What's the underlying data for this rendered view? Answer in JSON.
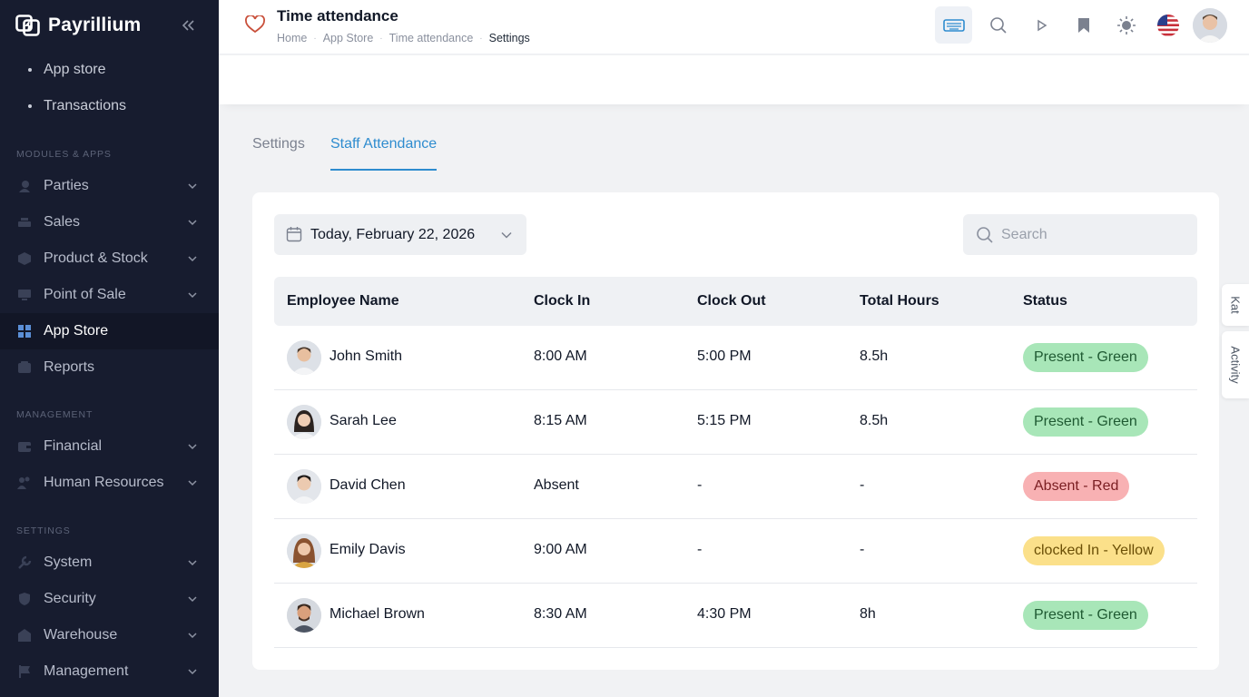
{
  "app": {
    "brand": "Payrillium"
  },
  "sidebar": {
    "sub_items": [
      {
        "label": "App store"
      },
      {
        "label": "Transactions"
      }
    ],
    "sections": {
      "modules": "MODULES & APPS",
      "management": "MANAGEMENT",
      "settings": "SETTINGS"
    },
    "modules": [
      {
        "label": "Parties",
        "icon": "parties-icon"
      },
      {
        "label": "Sales",
        "icon": "sales-icon"
      },
      {
        "label": "Product & Stock",
        "icon": "box-icon"
      },
      {
        "label": "Point of Sale",
        "icon": "monitor-icon"
      },
      {
        "label": "App Store",
        "icon": "grid-icon",
        "active": true
      },
      {
        "label": "Reports",
        "icon": "reports-icon"
      }
    ],
    "management": [
      {
        "label": "Financial",
        "icon": "wallet-icon"
      },
      {
        "label": "Human Resources",
        "icon": "people-icon"
      }
    ],
    "settings": [
      {
        "label": "System",
        "icon": "wrench-icon"
      },
      {
        "label": "Security",
        "icon": "shield-icon"
      },
      {
        "label": "Warehouse",
        "icon": "warehouse-icon"
      },
      {
        "label": "Management",
        "icon": "flag-icon"
      }
    ]
  },
  "header": {
    "title": "Time attendance",
    "breadcrumb": [
      "Home",
      "App Store",
      "Time attendance",
      "Settings"
    ]
  },
  "tabs": [
    {
      "label": "Settings",
      "active": false
    },
    {
      "label": "Staff Attendance",
      "active": true
    }
  ],
  "filters": {
    "date": "Today, February 22, 2026",
    "search_placeholder": "Search"
  },
  "table": {
    "columns": [
      "Employee Name",
      "Clock In",
      "Clock Out",
      "Total Hours",
      "Status"
    ],
    "rows": [
      {
        "name": "John Smith",
        "clock_in": "8:00 AM",
        "clock_out": "5:00 PM",
        "total": "8.5h",
        "status": "Present - Green",
        "status_color": "green"
      },
      {
        "name": "Sarah Lee",
        "clock_in": "8:15 AM",
        "clock_out": "5:15 PM",
        "total": "8.5h",
        "status": "Present - Green",
        "status_color": "green"
      },
      {
        "name": "David Chen",
        "clock_in": "Absent",
        "clock_out": "-",
        "total": "-",
        "status": "Absent - Red",
        "status_color": "red"
      },
      {
        "name": "Emily Davis",
        "clock_in": "9:00 AM",
        "clock_out": "-",
        "total": "-",
        "status": "clocked In - Yellow",
        "status_color": "yellow"
      },
      {
        "name": "Michael Brown",
        "clock_in": "8:30 AM",
        "clock_out": "4:30 PM",
        "total": "8h",
        "status": "Present - Green",
        "status_color": "green"
      }
    ]
  },
  "side_tabs": [
    "Kat",
    "Activity"
  ],
  "colors": {
    "sidebar_bg": "#171c2f",
    "accent": "#2e8ccf",
    "green": "#a8e6b8",
    "red": "#f8b1b3",
    "yellow": "#fbe08a"
  }
}
